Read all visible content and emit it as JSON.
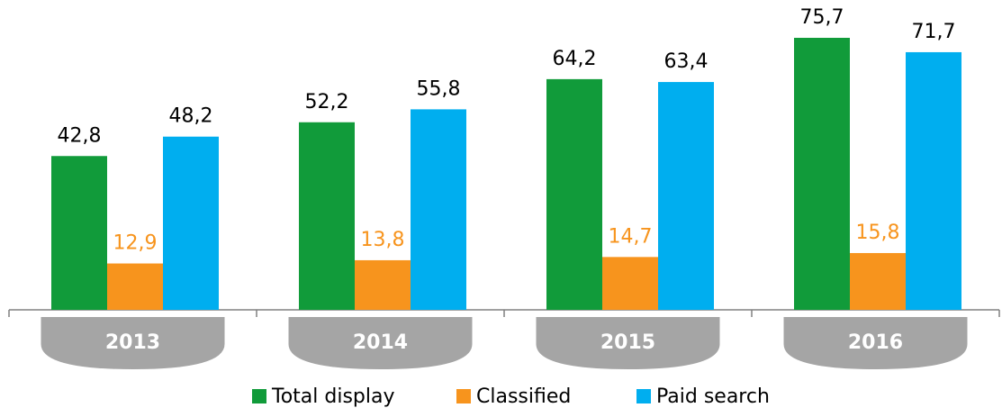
{
  "chart_data": {
    "type": "bar",
    "categories": [
      "2013",
      "2014",
      "2015",
      "2016"
    ],
    "series": [
      {
        "name": "Total display",
        "color": "#119b3a",
        "values": [
          42.8,
          52.2,
          64.2,
          75.7
        ],
        "value_labels": [
          "42,8",
          "52,2",
          "64,2",
          "75,7"
        ],
        "label_color": "#000000"
      },
      {
        "name": "Classified",
        "color": "#f7941d",
        "values": [
          12.9,
          13.8,
          14.7,
          15.8
        ],
        "value_labels": [
          "12,9",
          "13,8",
          "14,7",
          "15,8"
        ],
        "label_color": "#f7941d"
      },
      {
        "name": "Paid search",
        "color": "#00aeef",
        "values": [
          48.2,
          55.8,
          63.4,
          71.7
        ],
        "value_labels": [
          "48,2",
          "55,8",
          "63,4",
          "71,7"
        ],
        "label_color": "#000000"
      }
    ],
    "legend": "bottom"
  }
}
